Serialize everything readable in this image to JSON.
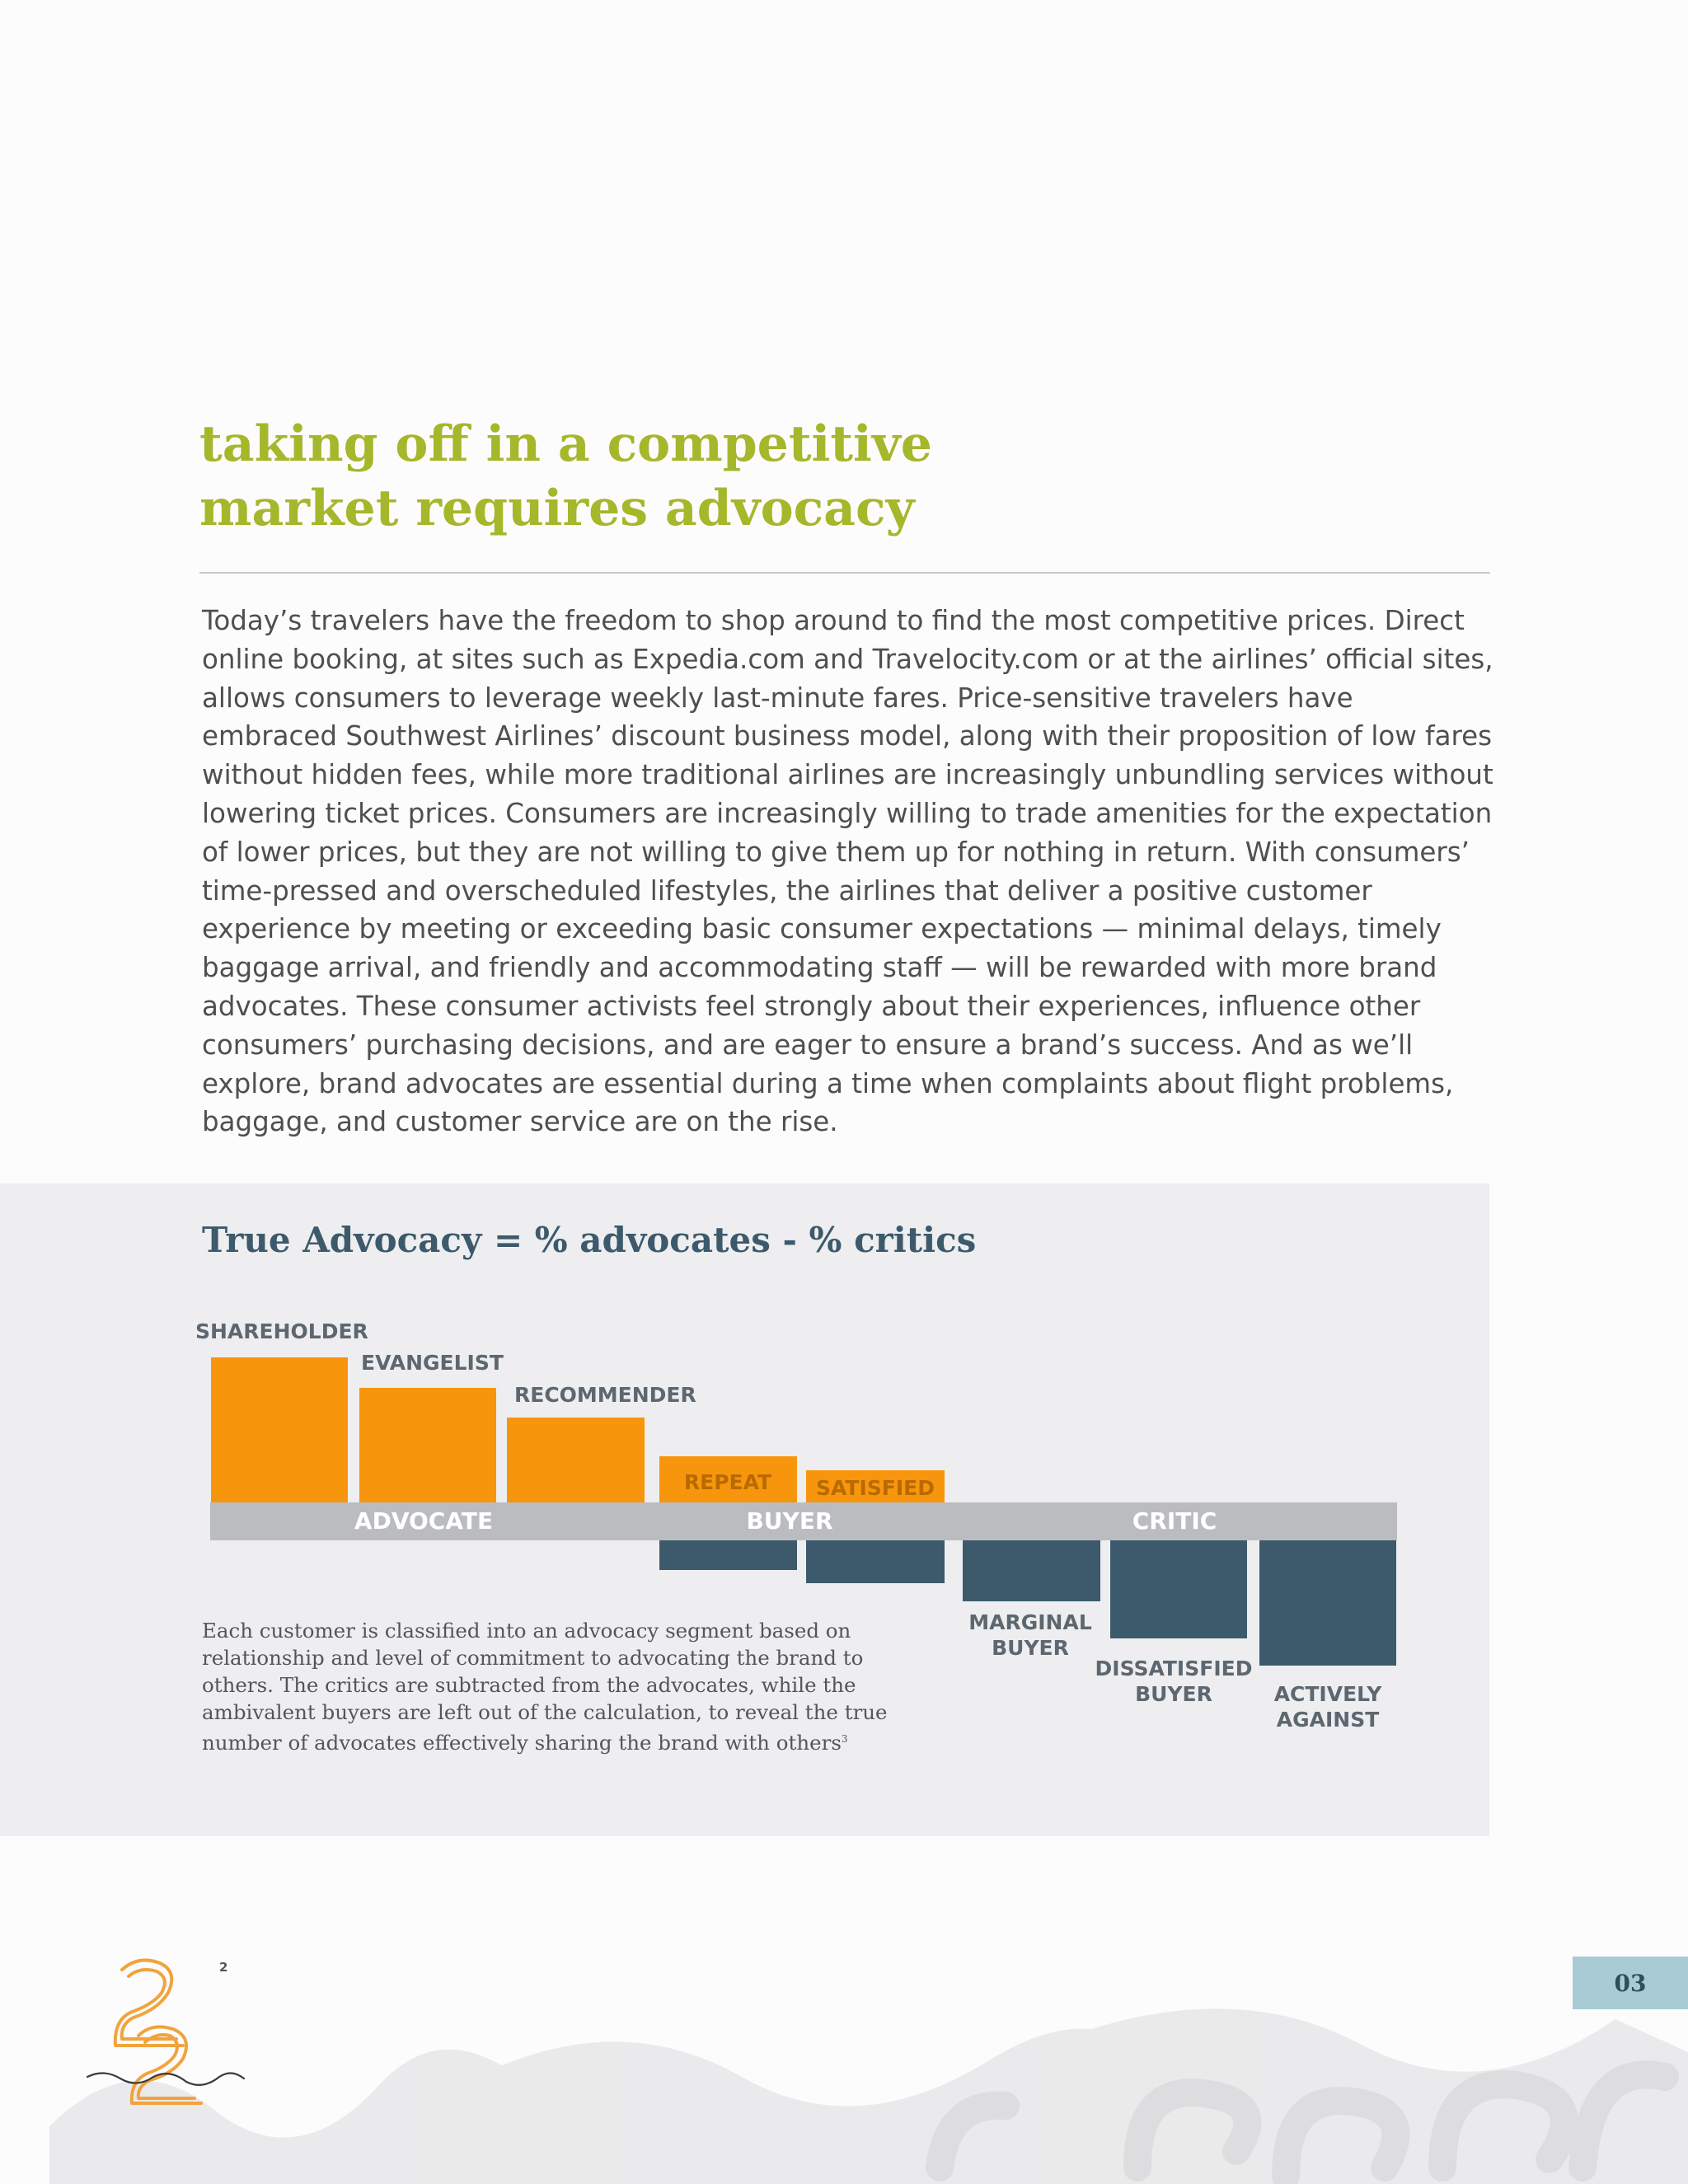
{
  "article": {
    "headline_lines": [
      "taking off in a competitive",
      "market requires advocacy"
    ],
    "body": "Today’s travelers have the freedom to shop around to find the most competitive prices. Direct online booking, at sites such as Expedia.com and Travelocity.com or at the airlines’ official sites, allows consumers to leverage weekly last-minute fares. Price-sensitive travelers have embraced Southwest Airlines’ discount business model, along with their proposition of low fares without hidden fees, while more traditional airlines are increasingly unbundling services without lowering ticket prices. Consumers are increasingly willing to trade amenities for the expectation of lower prices, but they are not willing to give them up for nothing in return. With consumers’ time-pressed and overscheduled lifestyles, the airlines that deliver a positive customer experience by meeting or exceeding basic consumer expectations — minimal delays, timely baggage arrival, and friendly and accommodating staff — will be rewarded with more brand advocates. These consumer activists feel strongly about their experiences, influence other consumers’ purchasing decisions, and are eager to ensure a brand’s success. And as we’ll explore, brand advocates are essential during a time when complaints about flight problems, baggage, and customer service are on the rise."
  },
  "chart_data": {
    "type": "bar",
    "title": "True Advocacy = % advocates - % critics",
    "bands": [
      "ADVOCATE",
      "BUYER",
      "CRITIC"
    ],
    "segments": [
      {
        "label": "SHAREHOLDER",
        "band": "ADVOCATE",
        "direction": "up",
        "value": 176,
        "color": "#f7960c"
      },
      {
        "label": "EVANGELIST",
        "band": "ADVOCATE",
        "direction": "up",
        "value": 139,
        "color": "#f7960c"
      },
      {
        "label": "RECOMMENDER",
        "band": "ADVOCATE",
        "direction": "up",
        "value": 103,
        "color": "#f7960c"
      },
      {
        "label": "REPEAT",
        "band": "BUYER",
        "direction": "up",
        "value": 56,
        "color": "#f7960c"
      },
      {
        "label": "",
        "band": "BUYER",
        "direction": "down",
        "value": 36,
        "color": "#3c5a6c"
      },
      {
        "label": "SATISFIED",
        "band": "BUYER",
        "direction": "up",
        "value": 39,
        "color": "#f7960c"
      },
      {
        "label": "",
        "band": "BUYER",
        "direction": "down",
        "value": 52,
        "color": "#3c5a6c"
      },
      {
        "label": "MARGINAL BUYER",
        "band": "CRITIC",
        "direction": "down",
        "value": 74,
        "color": "#3c5a6c"
      },
      {
        "label": "DISSATISFIED BUYER",
        "band": "CRITIC",
        "direction": "down",
        "value": 119,
        "color": "#3c5a6c"
      },
      {
        "label": "ACTIVELY AGAINST",
        "band": "CRITIC",
        "direction": "down",
        "value": 152,
        "color": "#3c5a6c"
      }
    ],
    "caption": "Each customer is classified into an advocacy segment based on relationship and level of commitment to advocating the brand to others. The critics are subtracted from the advocates, while the ambivalent buyers are left out of the calculation, to reveal the true number of advocates effectively sharing the brand with others",
    "caption_note": "3"
  },
  "colors": {
    "headline": "#a5b72a",
    "advocate_bar": "#f7960c",
    "critic_bar": "#3c5a6c",
    "band": "#bbbcbf",
    "page_num_bg": "#a9cbd3",
    "logo": "#f2a33c"
  },
  "footer": {
    "page_number": "03",
    "logo_text": "twenty two squared",
    "logo_superscript": "2"
  }
}
